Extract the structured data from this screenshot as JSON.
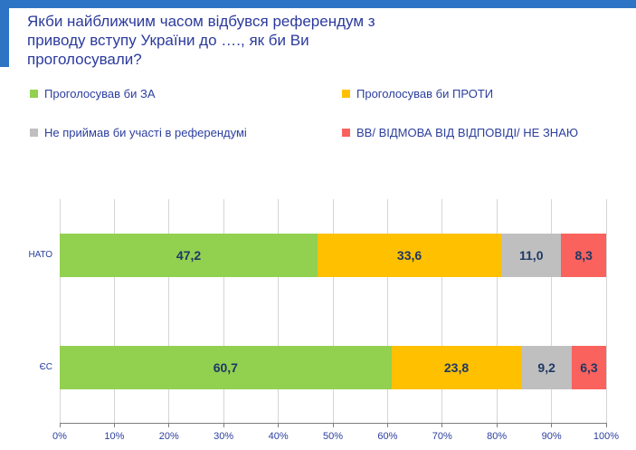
{
  "header": {
    "title": "Якби найближчим часом відбувся референдум з приводу вступу України до …., як би Ви проголосували?",
    "accent_color": "#2E74C4"
  },
  "legend": {
    "items": [
      {
        "label": "Проголосував би ЗА",
        "color": "#92D050"
      },
      {
        "label": "Проголосував би ПРОТИ",
        "color": "#FFC000"
      },
      {
        "label": "Не приймав би участі в референдумі",
        "color": "#BFBFBF"
      },
      {
        "label": "ВВ/ ВІДМОВА ВІД ВІДПОВІДІ/ НЕ ЗНАЮ",
        "color": "#F9625D"
      }
    ]
  },
  "chart_data": {
    "type": "bar",
    "orientation": "horizontal",
    "stacked": true,
    "title": "Якби найближчим часом відбувся референдум з приводу вступу України до …., як би Ви проголосували?",
    "categories": [
      "НАТО",
      "ЄС"
    ],
    "series": [
      {
        "name": "Проголосував би ЗА",
        "color": "#92D050",
        "values": [
          47.2,
          60.7
        ]
      },
      {
        "name": "Проголосував би ПРОТИ",
        "color": "#FFC000",
        "values": [
          33.6,
          23.8
        ]
      },
      {
        "name": "Не приймав би участі в референдумі",
        "color": "#BFBFBF",
        "values": [
          11.0,
          9.2
        ]
      },
      {
        "name": "ВВ/ ВІДМОВА ВІД ВІДПОВІДІ/ НЕ ЗНАЮ",
        "color": "#F9625D",
        "values": [
          8.3,
          6.3
        ]
      }
    ],
    "value_labels": [
      [
        "47,2",
        "33,6",
        "11,0",
        "8,3"
      ],
      [
        "60,7",
        "23,8",
        "9,2",
        "6,3"
      ]
    ],
    "xlabel": "",
    "ylabel": "",
    "xlim": [
      0,
      100
    ],
    "x_ticks": [
      "0%",
      "10%",
      "20%",
      "30%",
      "40%",
      "50%",
      "60%",
      "70%",
      "80%",
      "90%",
      "100%"
    ],
    "grid": true,
    "legend_position": "top"
  }
}
